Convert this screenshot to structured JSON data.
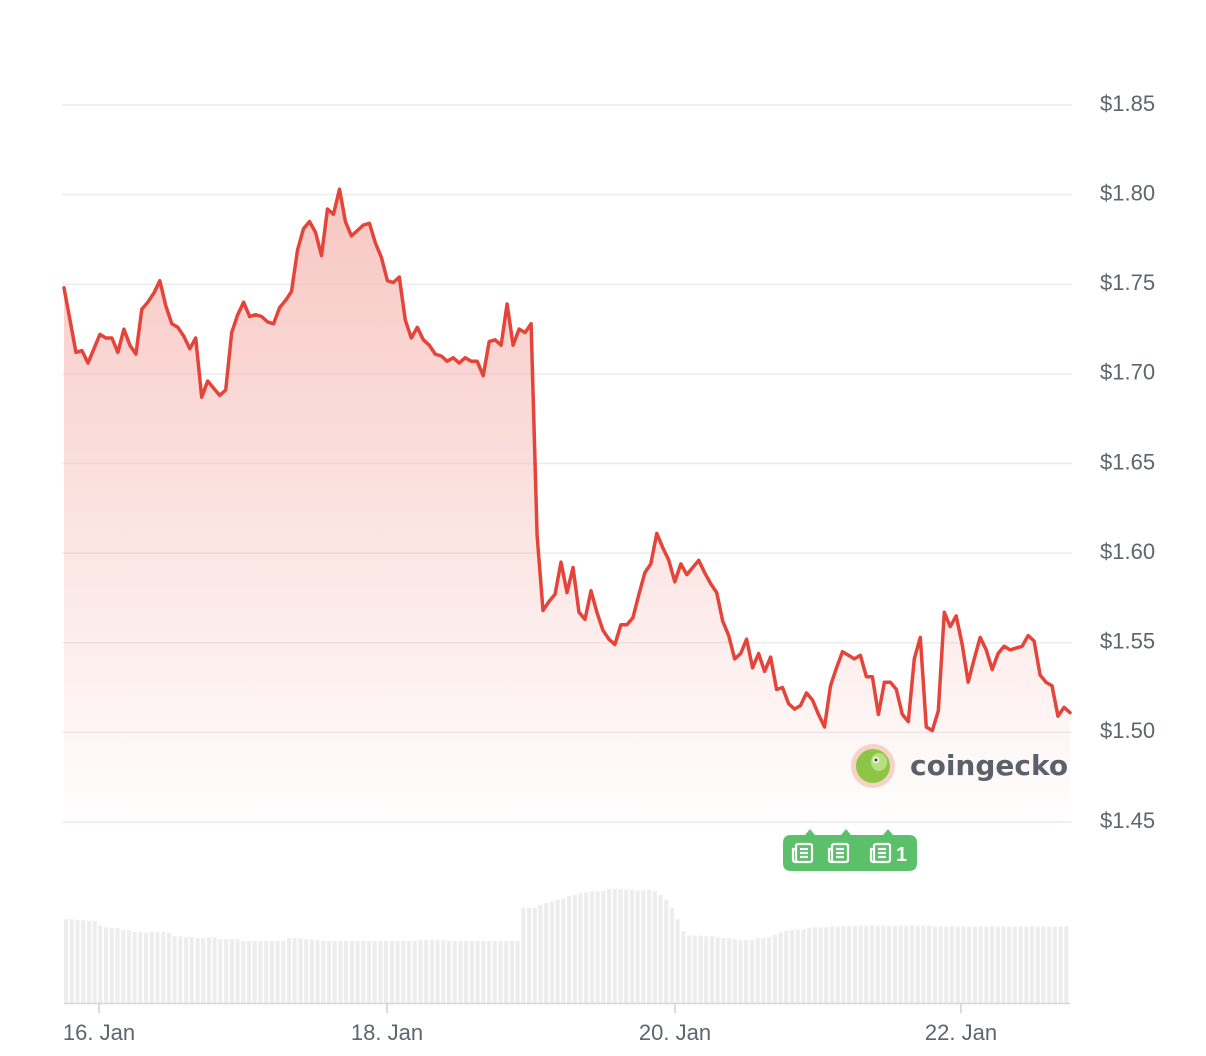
{
  "chart_data": {
    "type": "area",
    "series": [
      {
        "color": "#e5443a",
        "y": [
          1.748,
          1.73,
          1.712,
          1.713,
          1.706,
          1.714,
          1.722,
          1.72,
          1.72,
          1.712,
          1.725,
          1.716,
          1.711,
          1.736,
          1.74,
          1.745,
          1.752,
          1.738,
          1.728,
          1.726,
          1.721,
          1.714,
          1.72,
          1.687,
          1.696,
          1.692,
          1.688,
          1.691,
          1.723,
          1.733,
          1.74,
          1.732,
          1.733,
          1.732,
          1.729,
          1.728,
          1.737,
          1.741,
          1.746,
          1.769,
          1.781,
          1.785,
          1.779,
          1.766,
          1.792,
          1.789,
          1.803,
          1.785,
          1.777,
          1.78,
          1.783,
          1.784,
          1.773,
          1.765,
          1.752,
          1.751,
          1.754,
          1.73,
          1.72,
          1.726,
          1.719,
          1.716,
          1.711,
          1.71,
          1.707,
          1.709,
          1.706,
          1.709,
          1.707,
          1.707,
          1.699,
          1.718,
          1.719,
          1.716,
          1.739,
          1.716,
          1.725,
          1.723,
          1.728,
          1.61,
          1.568,
          1.573,
          1.577,
          1.595,
          1.578,
          1.592,
          1.567,
          1.563,
          1.579,
          1.567,
          1.557,
          1.552,
          1.549,
          1.56,
          1.56,
          1.564,
          1.577,
          1.589,
          1.594,
          1.611,
          1.603,
          1.596,
          1.584,
          1.594,
          1.588,
          1.592,
          1.596,
          1.589,
          1.583,
          1.578,
          1.562,
          1.554,
          1.541,
          1.544,
          1.552,
          1.536,
          1.544,
          1.534,
          1.542,
          1.524,
          1.525,
          1.516,
          1.513,
          1.515,
          1.522,
          1.518,
          1.51,
          1.503,
          1.526,
          1.536,
          1.545,
          1.543,
          1.541,
          1.543,
          1.531,
          1.531,
          1.51,
          1.528,
          1.528,
          1.524,
          1.51,
          1.506,
          1.541,
          1.553,
          1.503,
          1.501,
          1.512,
          1.567,
          1.559,
          1.565,
          1.549,
          1.528,
          1.541,
          1.553,
          1.546,
          1.535,
          1.544,
          1.548,
          1.546,
          1.547,
          1.548,
          1.554,
          1.551,
          1.532,
          1.528,
          1.526,
          1.509,
          1.514,
          1.511
        ]
      }
    ],
    "volume_relative": [
      0.93,
      0.93,
      0.92,
      0.92,
      0.91,
      0.91,
      0.86,
      0.84,
      0.83,
      0.83,
      0.81,
      0.81,
      0.79,
      0.79,
      0.78,
      0.79,
      0.79,
      0.79,
      0.78,
      0.74,
      0.74,
      0.73,
      0.73,
      0.72,
      0.72,
      0.73,
      0.73,
      0.71,
      0.71,
      0.71,
      0.71,
      0.69,
      0.69,
      0.69,
      0.69,
      0.69,
      0.69,
      0.69,
      0.69,
      0.72,
      0.72,
      0.72,
      0.71,
      0.71,
      0.7,
      0.69,
      0.69,
      0.69,
      0.69,
      0.69,
      0.69,
      0.69,
      0.69,
      0.69,
      0.69,
      0.69,
      0.69,
      0.69,
      0.69,
      0.69,
      0.69,
      0.69,
      0.7,
      0.7,
      0.7,
      0.7,
      0.7,
      0.69,
      0.69,
      0.69,
      0.69,
      0.69,
      0.69,
      0.69,
      0.69,
      0.69,
      0.69,
      0.69,
      0.69,
      0.69,
      1.06,
      1.06,
      1.06,
      1.09,
      1.11,
      1.13,
      1.15,
      1.16,
      1.19,
      1.2,
      1.22,
      1.23,
      1.24,
      1.24,
      1.25,
      1.27,
      1.27,
      1.27,
      1.26,
      1.26,
      1.25,
      1.25,
      1.26,
      1.24,
      1.2,
      1.15,
      1.06,
      0.93,
      0.8,
      0.75,
      0.75,
      0.75,
      0.74,
      0.74,
      0.73,
      0.72,
      0.72,
      0.71,
      0.7,
      0.7,
      0.7,
      0.72,
      0.72,
      0.73,
      0.76,
      0.78,
      0.8,
      0.81,
      0.82,
      0.82,
      0.83,
      0.84,
      0.84,
      0.84,
      0.85,
      0.85,
      0.85,
      0.86,
      0.86,
      0.86,
      0.86,
      0.86,
      0.86,
      0.86,
      0.86,
      0.86,
      0.86,
      0.86,
      0.86,
      0.86,
      0.86,
      0.86,
      0.85,
      0.85,
      0.85,
      0.85,
      0.85,
      0.85,
      0.85,
      0.85,
      0.85,
      0.85,
      0.85,
      0.85,
      0.85,
      0.85,
      0.85,
      0.85,
      0.85,
      0.85,
      0.85,
      0.85,
      0.85,
      0.85,
      0.85,
      0.85
    ],
    "x_labels": [
      "16. Jan",
      "18. Jan",
      "20. Jan",
      "22. Jan"
    ],
    "y_ticks": [
      "$1.85",
      "$1.80",
      "$1.75",
      "$1.70",
      "$1.65",
      "$1.60",
      "$1.55",
      "$1.50",
      "$1.45"
    ],
    "y_values": [
      1.85,
      1.8,
      1.75,
      1.7,
      1.65,
      1.6,
      1.55,
      1.5,
      1.45
    ],
    "ylim": [
      1.45,
      1.85
    ],
    "grid": true,
    "line_color": "#e5443a",
    "fill_color": "#f5b4ae"
  },
  "news_badge": {
    "count": "1",
    "color": "#5cc06a",
    "icon": "newspaper-icon"
  },
  "watermark": {
    "text": "coingecko",
    "icon": "gecko-logo-icon"
  }
}
